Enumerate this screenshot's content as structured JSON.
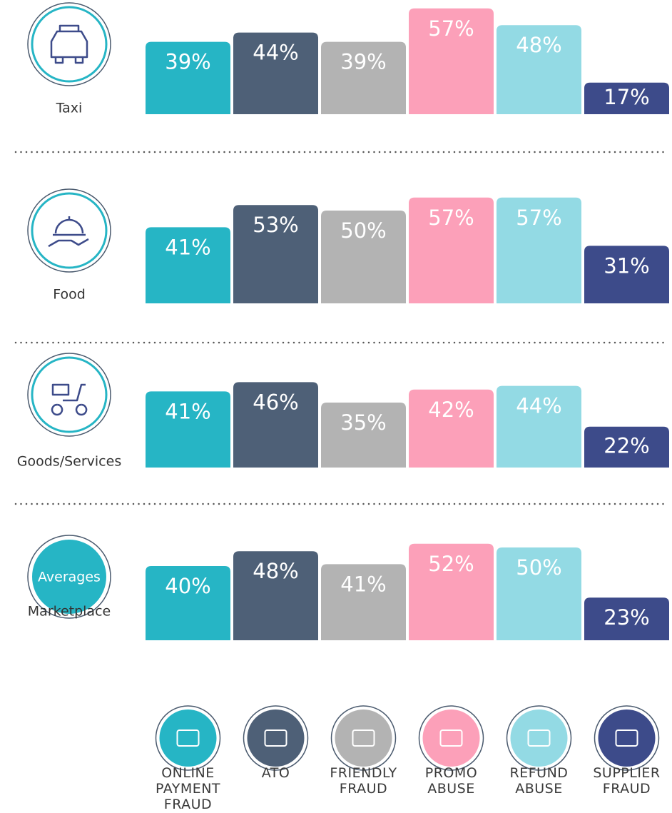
{
  "chart_data": {
    "type": "bar",
    "categories": [
      "Taxi",
      "Food",
      "Goods/Services",
      "Marketplace"
    ],
    "annotation": "Averages",
    "ylim": [
      0,
      60
    ],
    "series": [
      {
        "name": "ONLINE PAYMENT FRAUD",
        "color": "#26b5c5",
        "values": [
          39,
          41,
          41,
          40
        ],
        "value_labels": [
          "39%",
          "41%",
          "41%",
          "40%"
        ]
      },
      {
        "name": "ATO",
        "color": "#4e6077",
        "values": [
          44,
          53,
          46,
          48
        ],
        "value_labels": [
          "44%",
          "53%",
          "46%",
          "48%"
        ]
      },
      {
        "name": "FRIENDLY FRAUD",
        "color": "#b3b3b3",
        "values": [
          39,
          50,
          35,
          41
        ],
        "value_labels": [
          "39%",
          "50%",
          "35%",
          "41%"
        ]
      },
      {
        "name": "PROMO ABUSE",
        "color": "#fca0b9",
        "values": [
          57,
          57,
          42,
          52
        ],
        "value_labels": [
          "57%",
          "57%",
          "42%",
          "52%"
        ]
      },
      {
        "name": "REFUND ABUSE",
        "color": "#93dae4",
        "values": [
          48,
          57,
          44,
          50
        ],
        "value_labels": [
          "48%",
          "57%",
          "44%",
          "50%"
        ]
      },
      {
        "name": "SUPPLIER FRAUD",
        "color": "#3d4b8a",
        "values": [
          17,
          31,
          22,
          23
        ],
        "value_labels": [
          "17%",
          "31%",
          "22%",
          "23%"
        ]
      }
    ]
  }
}
